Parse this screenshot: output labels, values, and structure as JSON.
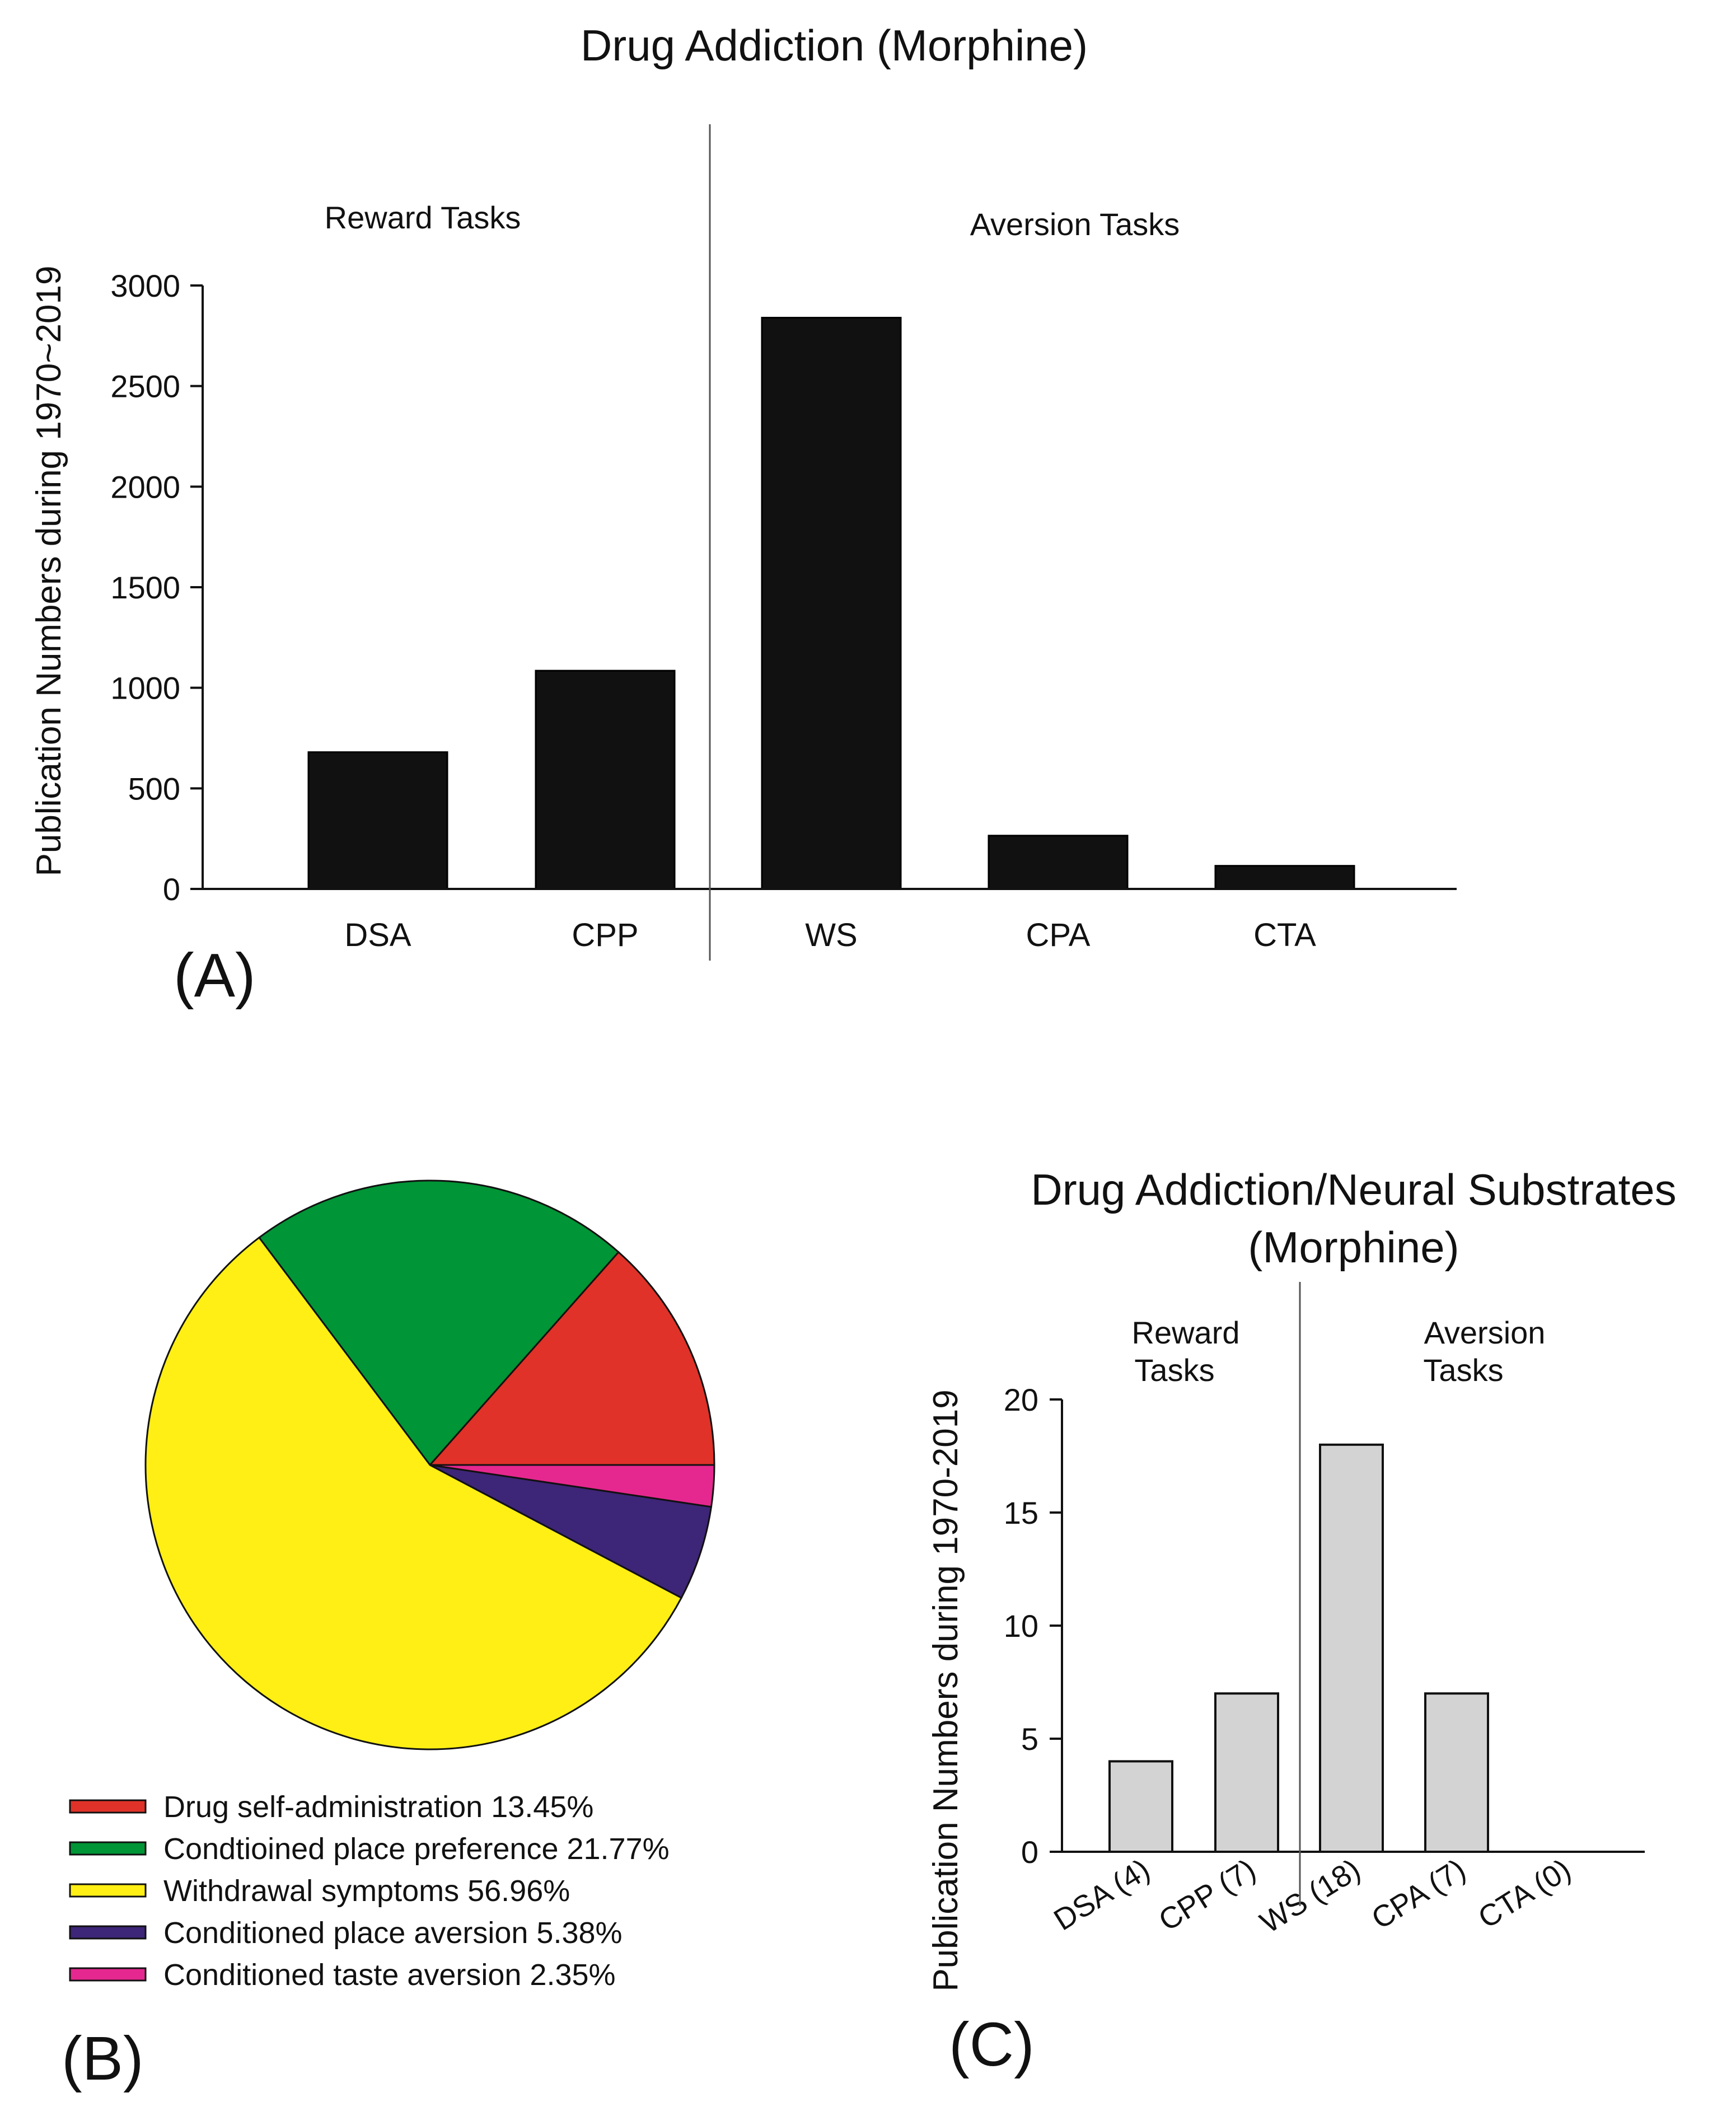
{
  "chart_data": [
    {
      "panel_label": "(A)",
      "type": "bar",
      "title": "Drug Addiction (Morphine)",
      "ylabel": "Publication Numbers during 1970~2019",
      "xlabel": "",
      "ylim": [
        0,
        3000
      ],
      "yticks": [
        0,
        500,
        1000,
        1500,
        2000,
        2500,
        3000
      ],
      "categories": [
        "DSA",
        "CPP",
        "WS",
        "CPA",
        "CTA"
      ],
      "values": [
        680,
        1085,
        2840,
        265,
        115
      ],
      "groups": [
        "Reward Tasks",
        "Aversion Tasks"
      ],
      "bar_color": "#111111"
    },
    {
      "panel_label": "(B)",
      "type": "pie",
      "slices": [
        {
          "label": "Drug self-administration 13.45%",
          "value": 13.45,
          "color": "#e03228"
        },
        {
          "label": "Condtioined place preference 21.77%",
          "value": 21.77,
          "color": "#009536"
        },
        {
          "label": "Withdrawal symptoms 56.96%",
          "value": 56.96,
          "color": "#ffef14"
        },
        {
          "label": "Conditioned place aversion 5.38%",
          "value": 5.38,
          "color": "#3d2577"
        },
        {
          "label": "Conditioned taste aversion 2.35%",
          "value": 2.35,
          "color": "#e5288f"
        }
      ]
    },
    {
      "panel_label": "(C)",
      "type": "bar",
      "title": "Drug Addiction/Neural Substrates",
      "subtitle": "(Morphine)",
      "ylabel": "Publication Numbers during 1970-2019",
      "xlabel": "",
      "ylim": [
        0,
        20
      ],
      "yticks": [
        0,
        5,
        10,
        15,
        20
      ],
      "categories": [
        "DSA (4)",
        "CPP (7)",
        "WS (18)",
        "CPA (7)",
        "CTA (0)"
      ],
      "values": [
        4,
        7,
        18,
        7,
        0
      ],
      "groups": [
        "Reward Tasks",
        "Aversion Tasks"
      ],
      "bar_color": "#d3d3d3"
    }
  ]
}
